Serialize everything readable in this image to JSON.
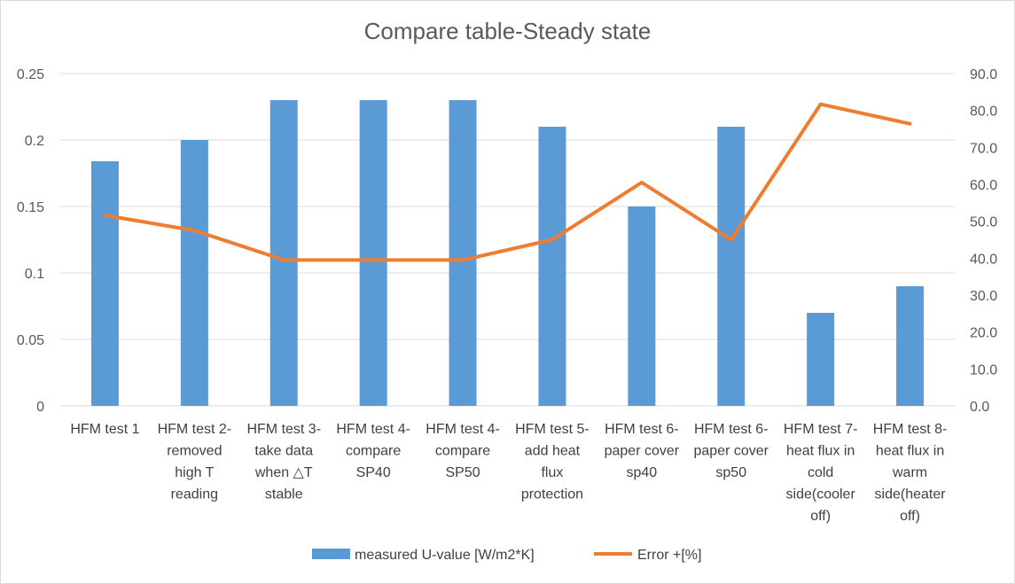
{
  "chart_data": {
    "type": "bar",
    "title": "Compare table-Steady state",
    "categories": [
      [
        "HFM test 1"
      ],
      [
        "HFM test 2-",
        "removed",
        "high T",
        "reading"
      ],
      [
        "HFM test 3-",
        "take data",
        "when △T",
        "stable"
      ],
      [
        "HFM test 4-",
        "compare",
        "SP40"
      ],
      [
        "HFM test 4-",
        "compare",
        "SP50"
      ],
      [
        "HFM test 5-",
        "add heat",
        "flux",
        "protection"
      ],
      [
        "HFM test 6-",
        "paper cover",
        "sp40"
      ],
      [
        "HFM test 6-",
        "paper cover",
        "sp50"
      ],
      [
        "HFM test 7-",
        "heat flux in",
        "cold",
        "side(cooler",
        "off)"
      ],
      [
        "HFM test 8-",
        "heat flux in",
        "warm",
        "side(heater",
        "off)"
      ]
    ],
    "series": [
      {
        "name": "measured U-value [W/m2*K]",
        "type": "bar",
        "axis": "left",
        "color": "#5b9bd5",
        "values": [
          0.184,
          0.2,
          0.23,
          0.23,
          0.23,
          0.21,
          0.15,
          0.21,
          0.07,
          0.09
        ]
      },
      {
        "name": "Error +[%]",
        "type": "line",
        "axis": "right",
        "color": "#ed7d31",
        "values": [
          51.6,
          47.5,
          39.5,
          39.5,
          39.5,
          45.0,
          60.5,
          45.0,
          81.7,
          76.4
        ]
      }
    ],
    "y_left": {
      "min": 0,
      "max": 0.25,
      "ticks": [
        "0",
        "0.05",
        "0.1",
        "0.15",
        "0.2",
        "0.25"
      ]
    },
    "y_right": {
      "min": 0,
      "max": 90,
      "ticks": [
        "0.0",
        "10.0",
        "20.0",
        "30.0",
        "40.0",
        "50.0",
        "60.0",
        "70.0",
        "80.0",
        "90.0"
      ]
    },
    "grid": true,
    "legend": "bottom"
  }
}
